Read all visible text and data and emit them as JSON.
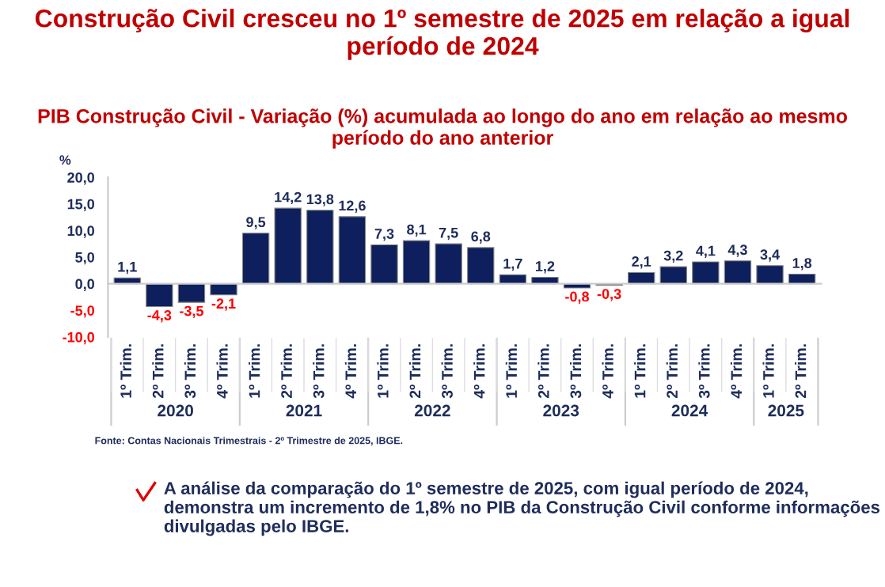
{
  "chart_data": {
    "type": "bar",
    "title": "Construção Civil cresceu no 1º semestre de 2025 em relação a igual período de 2024",
    "subtitle": "PIB Construção Civil - Variação (%) acumulada ao longo do ano em relação ao mesmo período do ano anterior",
    "ylabel": "%",
    "categories": [
      "1º Trim.",
      "2º Trim.",
      "3º Trim.",
      "4º Trim.",
      "1º Trim.",
      "2º Trim.",
      "3º Trim.",
      "4º Trim.",
      "1º Trim.",
      "2º Trim.",
      "3º Trim.",
      "4º Trim.",
      "1º Trim.",
      "2º Trim.",
      "3º Trim.",
      "4º Trim.",
      "1º Trim.",
      "2º Trim.",
      "3º Trim.",
      "4º Trim.",
      "1º Trim.",
      "2º Trim."
    ],
    "values": [
      1.1,
      -4.3,
      -3.5,
      -2.1,
      9.5,
      14.2,
      13.8,
      12.6,
      7.3,
      8.1,
      7.5,
      6.8,
      1.7,
      1.2,
      -0.8,
      -0.3,
      2.1,
      3.2,
      4.1,
      4.3,
      3.4,
      1.8
    ],
    "value_labels": [
      "1,1",
      "-4,3",
      "-3,5",
      "-2,1",
      "9,5",
      "14,2",
      "13,8",
      "12,6",
      "7,3",
      "8,1",
      "7,5",
      "6,8",
      "1,7",
      "1,2",
      "-0,8",
      "-0,3",
      "2,1",
      "3,2",
      "4,1",
      "4,3",
      "3,4",
      "1,8"
    ],
    "color": "#0d1f5c",
    "ylim": [
      -10,
      20
    ],
    "yticks": [
      {
        "value": -10,
        "label": "-10,0"
      },
      {
        "value": -5,
        "label": "-5,0"
      },
      {
        "value": 0,
        "label": "0,0"
      },
      {
        "value": 5,
        "label": "5,0"
      },
      {
        "value": 10,
        "label": "10,0"
      },
      {
        "value": 15,
        "label": "15,0"
      },
      {
        "value": 20,
        "label": "20,0"
      }
    ],
    "legend": false,
    "annotations": [
      "Fonte: Contas Nacionais Trimestrais - 2º Trimestre de 2025, IBGE.",
      "A análise da comparação do 1º semestre de 2025, com igual período de 2024, demonstra um incremento de 1,8% no PIB da Construção Civil conforme informações divulgadas pelo IBGE.",
      "2020",
      "2021",
      "2022",
      "2023",
      "2024",
      "2025"
    ]
  }
}
